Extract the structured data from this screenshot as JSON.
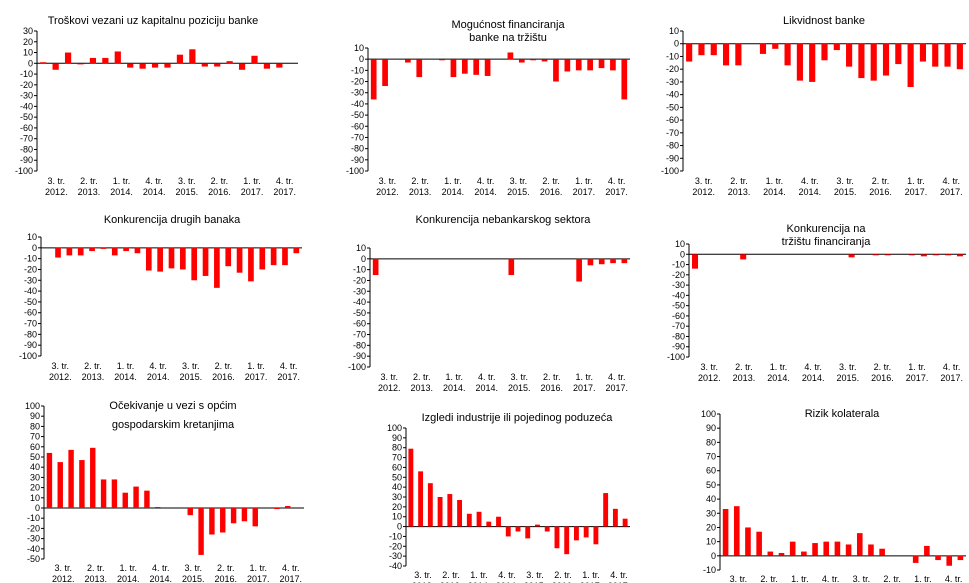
{
  "bar_color": "#ff0000",
  "axis_color": "#000000",
  "x_labels": {
    "quarters": [
      "3. tr.",
      "2. tr.",
      "1. tr.",
      "4. tr.",
      "3. tr.",
      "2. tr.",
      "1. tr.",
      "4. tr."
    ],
    "years": [
      "2012.",
      "2013.",
      "2014.",
      "2014.",
      "2015.",
      "2016.",
      "2017.",
      "2017."
    ]
  },
  "chart_data": [
    {
      "type": "bar",
      "title": "Troškovi vezani  uz kapitalnu  poziciju banke",
      "ylim": [
        -100,
        30
      ],
      "yticks": [
        30,
        20,
        10,
        0,
        -10,
        -20,
        -30,
        -40,
        -50,
        -60,
        -70,
        -80,
        -90,
        -100
      ],
      "values": [
        1,
        -6,
        10,
        -1,
        5,
        5,
        11,
        -4,
        -5,
        -4,
        -4,
        8,
        13,
        -3,
        -3,
        2,
        -6,
        7,
        -5,
        -4,
        0
      ]
    },
    {
      "type": "bar",
      "title": "Mogućnost  financiranja  banke na tržištu",
      "ylim": [
        -100,
        10
      ],
      "yticks": [
        10,
        0,
        -10,
        -20,
        -30,
        -40,
        -50,
        -60,
        -70,
        -80,
        -90,
        -100
      ],
      "values": [
        -36,
        -24,
        0,
        -3,
        -16,
        0,
        -1,
        -16,
        -13,
        -14,
        -15,
        0,
        6,
        -3,
        -1,
        -2,
        -20,
        -11,
        -10,
        -10,
        -8,
        -10,
        -36
      ]
    },
    {
      "type": "bar",
      "title": "Likvidnost banke",
      "ylim": [
        -100,
        10
      ],
      "yticks": [
        10,
        0,
        -10,
        -20,
        -30,
        -40,
        -50,
        -60,
        -70,
        -80,
        -90,
        -100
      ],
      "values": [
        -14,
        -9,
        -9,
        -17,
        -17,
        0,
        -8,
        -4,
        -17,
        -29,
        -30,
        -13,
        -5,
        -18,
        -27,
        -29,
        -25,
        -16,
        -34,
        -14,
        -18,
        -18,
        -20
      ]
    },
    {
      "type": "bar",
      "title": "Konkurencija  drugih banaka",
      "ylim": [
        -100,
        10
      ],
      "yticks": [
        10,
        0,
        -10,
        -20,
        -30,
        -40,
        -50,
        -60,
        -70,
        -80,
        -90,
        -100
      ],
      "values": [
        0,
        -9,
        -7,
        -7,
        -3,
        -1,
        -7,
        -3,
        -5,
        -21,
        -22,
        -19,
        -20,
        -30,
        -26,
        -37,
        -17,
        -23,
        -31,
        -20,
        -16,
        -16,
        -5
      ]
    },
    {
      "type": "bar",
      "title": "Konkurencija  nebankarskog  sektora",
      "ylim": [
        -100,
        10
      ],
      "yticks": [
        10,
        0,
        -10,
        -20,
        -30,
        -40,
        -50,
        -60,
        -70,
        -80,
        -90,
        -100
      ],
      "values": [
        -15,
        0,
        0,
        0,
        0,
        0,
        0,
        0,
        0,
        0,
        0,
        0,
        -15,
        0,
        0,
        0,
        0,
        0,
        -21,
        -6,
        -5,
        -4,
        -4
      ]
    },
    {
      "type": "bar",
      "title": "Konkurencija  na tržištu financiranja",
      "ylim": [
        -100,
        10
      ],
      "yticks": [
        10,
        0,
        -10,
        -20,
        -30,
        -40,
        -50,
        -60,
        -70,
        -80,
        -90,
        -100
      ],
      "values": [
        -14,
        0,
        0,
        0,
        -5,
        0,
        0,
        0,
        0,
        0,
        0,
        0,
        0,
        -3,
        0,
        -1,
        -1,
        0,
        -1,
        -2,
        -1,
        -1,
        -2
      ]
    },
    {
      "type": "bar",
      "title": "Očekivanje  u vezi s općim gospodarskim  kretanjima",
      "ylim": [
        -50,
        100
      ],
      "yticks": [
        100,
        90,
        80,
        70,
        60,
        50,
        40,
        30,
        20,
        10,
        0,
        -10,
        -20,
        -30,
        -40,
        -50
      ],
      "values": [
        54,
        45,
        57,
        47,
        59,
        28,
        28,
        15,
        21,
        17,
        1,
        0,
        0,
        -7,
        -46,
        -26,
        -24,
        -15,
        -13,
        -18,
        0,
        -1,
        2,
        0
      ]
    },
    {
      "type": "bar",
      "title": "Izgledi industrije ili pojedinog  poduzeća",
      "ylim": [
        -40,
        100
      ],
      "yticks": [
        100,
        90,
        80,
        70,
        60,
        50,
        40,
        30,
        20,
        10,
        0,
        -10,
        -20,
        -30,
        -40
      ],
      "values": [
        79,
        56,
        44,
        30,
        33,
        27,
        13,
        15,
        5,
        10,
        -10,
        -5,
        -12,
        2,
        -5,
        -22,
        -28,
        -14,
        -11,
        -18,
        34,
        18,
        8
      ]
    },
    {
      "type": "bar",
      "title": "Rizik kolaterala",
      "ylim": [
        -10,
        100
      ],
      "yticks": [
        100,
        90,
        80,
        70,
        60,
        50,
        40,
        30,
        20,
        10,
        0,
        -10
      ],
      "values": [
        33,
        35,
        20,
        17,
        3,
        2,
        10,
        3,
        9,
        10,
        10,
        8,
        16,
        8,
        5,
        0,
        0,
        -5,
        7,
        -3,
        -7,
        -3
      ]
    }
  ]
}
